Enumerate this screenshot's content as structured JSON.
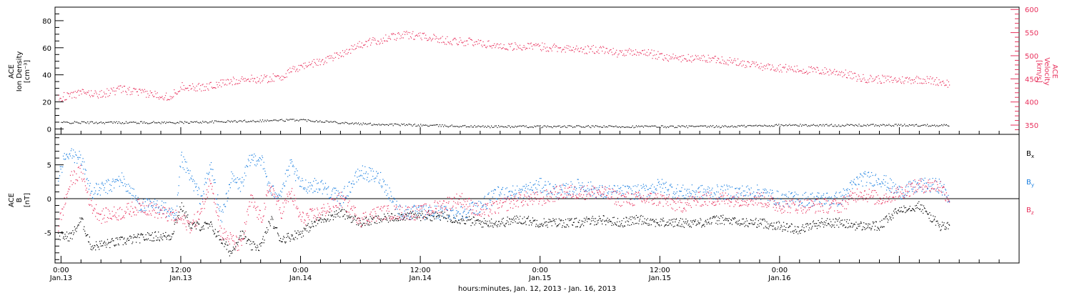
{
  "colors": {
    "black": "#000000",
    "red": "#e8305c",
    "blue": "#1a7fe0"
  },
  "chart_data": [
    {
      "type": "scatter",
      "panel": "top",
      "ylabel_left": [
        "ACE",
        "Ion Density",
        "[cm⁻³]"
      ],
      "ylabel_right": [
        "ACE",
        "Velocity",
        "[km/s]"
      ],
      "ylim_left": [
        -4,
        90
      ],
      "ylim_right": [
        330,
        605
      ],
      "yticks_left": [
        "0",
        "20",
        "40",
        "60",
        "80"
      ],
      "yticks_right": [
        "350",
        "400",
        "450",
        "500",
        "550",
        "600"
      ],
      "series": [
        {
          "color": "black",
          "axis": "left",
          "quantity": "density",
          "x": [
            0,
            6,
            12,
            18,
            24,
            30,
            36,
            42,
            48,
            54,
            60,
            66,
            72,
            78,
            84,
            89
          ],
          "y": [
            5,
            5,
            5,
            6,
            7,
            4,
            3,
            2,
            2,
            2,
            2,
            2,
            3,
            3,
            3,
            3
          ]
        },
        {
          "color": "red",
          "axis": "right",
          "quantity": "velocity",
          "x": [
            -0.3,
            2,
            4,
            6,
            8,
            10,
            11,
            12,
            14,
            16,
            18,
            20,
            22,
            24,
            26,
            28,
            30,
            32,
            34,
            36,
            38,
            40,
            42,
            44,
            46,
            48,
            50,
            52,
            54,
            56,
            58,
            60,
            62,
            64,
            66,
            68,
            70,
            72,
            74,
            76,
            78,
            80,
            82,
            84,
            86,
            88,
            89
          ],
          "y": [
            410,
            420,
            418,
            428,
            420,
            415,
            412,
            435,
            432,
            440,
            450,
            450,
            455,
            478,
            488,
            505,
            525,
            535,
            545,
            545,
            535,
            532,
            528,
            522,
            520,
            520,
            518,
            513,
            515,
            505,
            510,
            500,
            495,
            495,
            493,
            485,
            478,
            475,
            470,
            468,
            465,
            452,
            450,
            448,
            450,
            445,
            440
          ]
        }
      ]
    },
    {
      "type": "scatter",
      "panel": "bottom",
      "ylabel_left": [
        "ACE",
        "B",
        "[nT]"
      ],
      "ylim": [
        -9.5,
        9.5
      ],
      "yticks": [
        "-5",
        "0",
        "5"
      ],
      "legend_placement": "right",
      "series": [
        {
          "name": "B",
          "subscript": "x",
          "color": "black",
          "x": [
            -0.3,
            1,
            2,
            3,
            5,
            7,
            9,
            11,
            12,
            13,
            15,
            16,
            17,
            18,
            19,
            20,
            21,
            22,
            24,
            26,
            28,
            30,
            32,
            34,
            36,
            38,
            40,
            42,
            44,
            46,
            48,
            50,
            52,
            54,
            56,
            58,
            60,
            62,
            64,
            66,
            68,
            70,
            72,
            74,
            76,
            78,
            80,
            82,
            84,
            86,
            88,
            89
          ],
          "y": [
            -5.5,
            -5.5,
            -3,
            -7,
            -6.5,
            -6,
            -5.5,
            -5.5,
            -1,
            -4,
            -4,
            -6,
            -8,
            -5,
            -7,
            -7,
            -3,
            -6,
            -5,
            -3,
            -2,
            -3.5,
            -3,
            -2.5,
            -2.5,
            -2.5,
            -3,
            -3.5,
            -3.5,
            -3,
            -3.5,
            -3.5,
            -3.5,
            -3,
            -3.5,
            -3,
            -3.5,
            -3.5,
            -3.5,
            -3,
            -3.5,
            -3.5,
            -4,
            -4.5,
            -3.5,
            -3.5,
            -4,
            -4,
            -1.5,
            -1,
            -4,
            -4
          ]
        },
        {
          "name": "B",
          "subscript": "y",
          "color": "blue",
          "x": [
            -0.3,
            0.3,
            1,
            2,
            3,
            5,
            6,
            8,
            10,
            11.5,
            12,
            13,
            14,
            15,
            16,
            17,
            18,
            19,
            20,
            21,
            22,
            23,
            24,
            26,
            28,
            30,
            32,
            34,
            36,
            38,
            40,
            42,
            44,
            46,
            48,
            50,
            52,
            54,
            56,
            58,
            60,
            62,
            64,
            66,
            68,
            70,
            72,
            74,
            76,
            78,
            80,
            82,
            84,
            86,
            88,
            89
          ],
          "y": [
            3,
            6,
            6.5,
            6,
            1,
            2,
            3,
            -1,
            -1,
            -3,
            6,
            3,
            0,
            5,
            -3,
            3,
            2,
            6,
            6,
            1,
            1,
            5,
            2,
            2,
            0,
            4,
            3,
            -2,
            -2,
            -2,
            -2,
            -1,
            1,
            1,
            2,
            1,
            2,
            1,
            1,
            1,
            2,
            1,
            1,
            1,
            1,
            1,
            0,
            0,
            0,
            0,
            3,
            3,
            1,
            2,
            2,
            0
          ]
        },
        {
          "name": "B",
          "subscript": "z",
          "color": "red",
          "x": [
            -0.3,
            1,
            2,
            3,
            4,
            6,
            8,
            10,
            12,
            13,
            14,
            15,
            16,
            17,
            18,
            19,
            20,
            21,
            22,
            23,
            24,
            26,
            28,
            30,
            32,
            34,
            36,
            38,
            40,
            42,
            44,
            46,
            48,
            50,
            52,
            54,
            56,
            58,
            60,
            62,
            64,
            66,
            68,
            70,
            72,
            74,
            76,
            78,
            80,
            82,
            84,
            86,
            88,
            89
          ],
          "y": [
            -4,
            3,
            4,
            -1,
            -2.5,
            -2,
            -1,
            -2,
            -3,
            -4,
            -2,
            3,
            -5,
            -6,
            -7,
            0,
            -3,
            2,
            -2,
            1,
            -3,
            -2,
            0,
            -3,
            -2,
            -2,
            -2,
            -1,
            0,
            -2,
            -1,
            0,
            0,
            1,
            1,
            1,
            0,
            0,
            0,
            -1,
            0,
            0,
            0,
            0,
            -1,
            -1,
            -1,
            -1,
            1,
            0,
            1,
            2,
            2,
            0
          ]
        }
      ]
    }
  ],
  "x_axis": {
    "xlim": [
      -0.6,
      96
    ],
    "ticks": [
      {
        "x": 0,
        "time": "0:00",
        "date": "Jan.13"
      },
      {
        "x": 12,
        "time": "12:00",
        "date": "Jan.13"
      },
      {
        "x": 24,
        "time": "0:00",
        "date": "Jan.14"
      },
      {
        "x": 36,
        "time": "12:00",
        "date": "Jan.14"
      },
      {
        "x": 48,
        "time": "0:00",
        "date": "Jan.15"
      },
      {
        "x": 60,
        "time": "12:00",
        "date": "Jan.15"
      },
      {
        "x": 72,
        "time": "0:00",
        "date": "Jan.16"
      }
    ],
    "xlabel": "hours:minutes, Jan. 12, 2013 - Jan. 16, 2013"
  }
}
